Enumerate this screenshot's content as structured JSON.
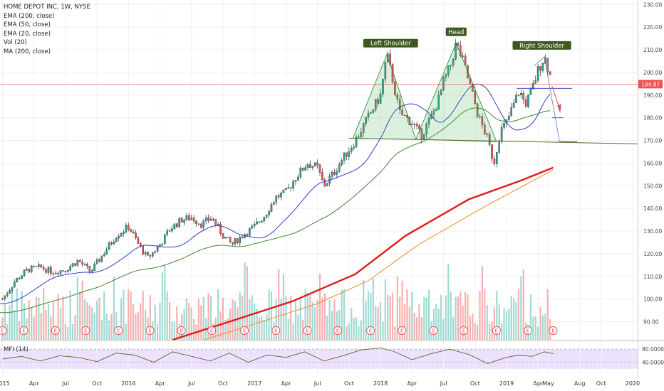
{
  "chart_data": {
    "type": "candlestick",
    "legend": {
      "title": "HOME DEPOT INC, 1W, NYSE",
      "lines": [
        "EMA (200, close)",
        "EMA (50, close)",
        "EMA (20, close)",
        "Vol (20)",
        "MA (200, close)"
      ]
    },
    "price_axis": {
      "ticks": [
        90,
        100,
        110,
        120,
        130,
        140,
        150,
        160,
        170,
        180,
        190,
        200,
        210,
        220,
        230
      ],
      "tick_suffix": ".00",
      "range": [
        82,
        232
      ]
    },
    "last_price": "194.87",
    "last_price_value": 194.87,
    "mfi_label": "MFI (14)",
    "mfi_axis": {
      "ticks": [
        "80.0000",
        "40.0000"
      ],
      "values": [
        80,
        40
      ],
      "range": [
        0,
        100
      ]
    },
    "time_axis": {
      "labels": [
        "2015",
        "Apr",
        "Jul",
        "Oct",
        "2016",
        "Apr",
        "Jul",
        "Oct",
        "2017",
        "Apr",
        "Jul",
        "Oct",
        "2018",
        "Apr",
        "Jul",
        "Oct",
        "2019",
        "Apr",
        "May",
        "Aug",
        "Oct",
        "2020"
      ],
      "positions": [
        2015.0,
        2015.25,
        2015.5,
        2015.75,
        2016.0,
        2016.25,
        2016.5,
        2016.75,
        2017.0,
        2017.25,
        2017.5,
        2017.75,
        2018.0,
        2018.25,
        2018.5,
        2018.75,
        2019.0,
        2019.25,
        2019.33,
        2019.58,
        2019.75,
        2020.0
      ]
    },
    "time_range": [
      2014.98,
      2020.04
    ],
    "patterns": [
      {
        "text": "Left Shoulder",
        "t": 2018.08,
        "p": 212
      },
      {
        "text": "Head",
        "t": 2018.6,
        "p": 217
      },
      {
        "text": "Right Shoulder",
        "t": 2019.28,
        "p": 211
      }
    ],
    "neckline": [
      [
        2017.75,
        171
      ],
      [
        2020.04,
        168.5
      ]
    ],
    "earnings_x": [
      2015.0,
      2015.17,
      2015.42,
      2015.66,
      2015.92,
      2016.17,
      2016.42,
      2016.66,
      2016.92,
      2017.17,
      2017.42,
      2017.66,
      2017.92,
      2018.17,
      2018.42,
      2018.66,
      2018.92,
      2019.17,
      2019.37
    ],
    "anchor_points": [
      [
        2015.0,
        100
      ],
      [
        2015.1,
        108
      ],
      [
        2015.2,
        113
      ],
      [
        2015.3,
        114
      ],
      [
        2015.4,
        112
      ],
      [
        2015.5,
        113
      ],
      [
        2015.6,
        117
      ],
      [
        2015.7,
        112
      ],
      [
        2015.8,
        120
      ],
      [
        2015.9,
        128
      ],
      [
        2016.0,
        132
      ],
      [
        2016.08,
        124
      ],
      [
        2016.15,
        118
      ],
      [
        2016.25,
        124
      ],
      [
        2016.33,
        131
      ],
      [
        2016.42,
        135
      ],
      [
        2016.5,
        136
      ],
      [
        2016.58,
        133
      ],
      [
        2016.66,
        136
      ],
      [
        2016.75,
        128
      ],
      [
        2016.82,
        124
      ],
      [
        2016.9,
        128
      ],
      [
        2017.0,
        132
      ],
      [
        2017.08,
        137
      ],
      [
        2017.17,
        145
      ],
      [
        2017.25,
        147
      ],
      [
        2017.33,
        154
      ],
      [
        2017.42,
        160
      ],
      [
        2017.5,
        158
      ],
      [
        2017.55,
        150
      ],
      [
        2017.62,
        155
      ],
      [
        2017.7,
        162
      ],
      [
        2017.8,
        170
      ],
      [
        2017.9,
        180
      ],
      [
        2018.0,
        190
      ],
      [
        2018.05,
        208
      ],
      [
        2018.1,
        196
      ],
      [
        2018.15,
        182
      ],
      [
        2018.25,
        178
      ],
      [
        2018.32,
        172
      ],
      [
        2018.4,
        180
      ],
      [
        2018.46,
        188
      ],
      [
        2018.5,
        196
      ],
      [
        2018.55,
        202
      ],
      [
        2018.6,
        213
      ],
      [
        2018.66,
        204
      ],
      [
        2018.72,
        192
      ],
      [
        2018.78,
        180
      ],
      [
        2018.84,
        172
      ],
      [
        2018.9,
        160
      ],
      [
        2018.95,
        174
      ],
      [
        2019.0,
        178
      ],
      [
        2019.05,
        185
      ],
      [
        2019.1,
        192
      ],
      [
        2019.15,
        186
      ],
      [
        2019.2,
        192
      ],
      [
        2019.25,
        201
      ],
      [
        2019.3,
        207
      ],
      [
        2019.34,
        200
      ],
      [
        2019.36,
        195
      ]
    ],
    "ma200_points": [
      [
        2016.35,
        82
      ],
      [
        2016.8,
        90
      ],
      [
        2017.3,
        99
      ],
      [
        2017.8,
        111
      ],
      [
        2018.2,
        128
      ],
      [
        2018.7,
        144
      ],
      [
        2019.1,
        152
      ],
      [
        2019.37,
        158
      ]
    ],
    "ema200_points": [
      [
        2016.6,
        82
      ],
      [
        2017.0,
        89
      ],
      [
        2017.5,
        98
      ],
      [
        2017.9,
        108
      ],
      [
        2018.3,
        124
      ],
      [
        2018.8,
        140
      ],
      [
        2019.1,
        149
      ],
      [
        2019.37,
        157
      ]
    ],
    "mfi_points": [
      [
        2015.0,
        50
      ],
      [
        2015.15,
        58
      ],
      [
        2015.3,
        44
      ],
      [
        2015.45,
        60
      ],
      [
        2015.6,
        55
      ],
      [
        2015.75,
        42
      ],
      [
        2015.9,
        68
      ],
      [
        2016.05,
        62
      ],
      [
        2016.2,
        40
      ],
      [
        2016.35,
        72
      ],
      [
        2016.5,
        58
      ],
      [
        2016.65,
        44
      ],
      [
        2016.8,
        68
      ],
      [
        2016.95,
        40
      ],
      [
        2017.1,
        62
      ],
      [
        2017.25,
        55
      ],
      [
        2017.4,
        72
      ],
      [
        2017.55,
        44
      ],
      [
        2017.7,
        60
      ],
      [
        2017.85,
        78
      ],
      [
        2018.0,
        84
      ],
      [
        2018.1,
        74
      ],
      [
        2018.25,
        48
      ],
      [
        2018.4,
        66
      ],
      [
        2018.55,
        80
      ],
      [
        2018.7,
        64
      ],
      [
        2018.85,
        36
      ],
      [
        2019.0,
        55
      ],
      [
        2019.1,
        62
      ],
      [
        2019.2,
        58
      ],
      [
        2019.3,
        72
      ],
      [
        2019.37,
        66
      ]
    ]
  }
}
